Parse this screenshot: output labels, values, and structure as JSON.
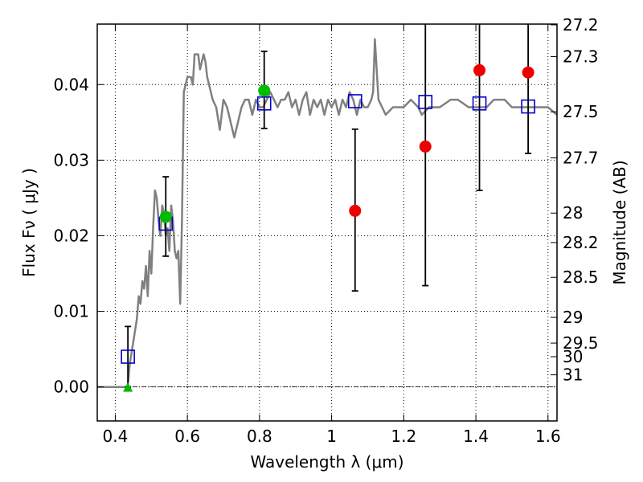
{
  "chart_data": {
    "type": "scatter",
    "xlabel": "Wavelength  λ (μm)",
    "ylabel": "Flux  Fν  ( μJy )",
    "y2label": "Magnitude (AB)",
    "xlim": [
      0.35,
      1.625
    ],
    "ylim": [
      -0.0045,
      0.048
    ],
    "grid": true,
    "x_ticks": [
      0.4,
      0.6,
      0.8,
      1.0,
      1.2,
      1.4,
      1.6
    ],
    "x_tick_labels": [
      "0.4",
      "0.6",
      "0.8",
      "1",
      "1.2",
      "1.4",
      "1.6"
    ],
    "y_ticks": [
      0.0,
      0.01,
      0.02,
      0.03,
      0.04
    ],
    "y_tick_labels": [
      "0.00",
      "0.01",
      "0.02",
      "0.03",
      "0.04"
    ],
    "mag_ticks": [
      {
        "label": "27.2",
        "flux": 0.0479
      },
      {
        "label": "27.3",
        "flux": 0.0437
      },
      {
        "label": "27.5",
        "flux": 0.0364
      },
      {
        "label": "27.7",
        "flux": 0.0303
      },
      {
        "label": "28",
        "flux": 0.023
      },
      {
        "label": "28.2",
        "flux": 0.0191
      },
      {
        "label": "28.5",
        "flux": 0.0145
      },
      {
        "label": "29",
        "flux": 0.0092
      },
      {
        "label": "29.5",
        "flux": 0.0058
      },
      {
        "label": "30",
        "flux": 0.004
      },
      {
        "label": "31",
        "flux": 0.0016
      }
    ],
    "colors": {
      "model_line": "#808080",
      "model_points": "#0000cc",
      "green_points": "#00bb00",
      "red_points": "#ee0000",
      "error_bars": "#000000"
    },
    "series": [
      {
        "kind": "model_spectrum",
        "x": [
          0.35,
          0.43,
          0.435,
          0.44,
          0.45,
          0.46,
          0.465,
          0.47,
          0.475,
          0.48,
          0.485,
          0.49,
          0.495,
          0.5,
          0.505,
          0.51,
          0.515,
          0.52,
          0.525,
          0.53,
          0.535,
          0.54,
          0.545,
          0.55,
          0.555,
          0.56,
          0.565,
          0.57,
          0.575,
          0.58,
          0.585,
          0.59,
          0.6,
          0.61,
          0.615,
          0.62,
          0.63,
          0.635,
          0.64,
          0.645,
          0.65,
          0.655,
          0.66,
          0.67,
          0.68,
          0.69,
          0.7,
          0.71,
          0.72,
          0.73,
          0.74,
          0.75,
          0.76,
          0.77,
          0.78,
          0.79,
          0.8,
          0.81,
          0.82,
          0.83,
          0.84,
          0.85,
          0.86,
          0.87,
          0.88,
          0.89,
          0.9,
          0.91,
          0.92,
          0.93,
          0.94,
          0.95,
          0.96,
          0.97,
          0.98,
          0.99,
          1.0,
          1.01,
          1.02,
          1.03,
          1.04,
          1.05,
          1.06,
          1.07,
          1.08,
          1.09,
          1.1,
          1.11,
          1.115,
          1.12,
          1.13,
          1.14,
          1.15,
          1.17,
          1.2,
          1.22,
          1.24,
          1.25,
          1.27,
          1.3,
          1.33,
          1.35,
          1.38,
          1.4,
          1.43,
          1.45,
          1.48,
          1.5,
          1.53,
          1.55,
          1.58,
          1.6,
          1.625
        ],
        "values": [
          0.0,
          0.0,
          0.0002,
          0.003,
          0.006,
          0.009,
          0.012,
          0.011,
          0.014,
          0.013,
          0.016,
          0.012,
          0.018,
          0.015,
          0.021,
          0.026,
          0.025,
          0.022,
          0.02,
          0.024,
          0.023,
          0.02,
          0.021,
          0.018,
          0.024,
          0.022,
          0.018,
          0.017,
          0.018,
          0.011,
          0.022,
          0.039,
          0.041,
          0.041,
          0.04,
          0.044,
          0.044,
          0.042,
          0.043,
          0.044,
          0.043,
          0.041,
          0.04,
          0.038,
          0.037,
          0.034,
          0.038,
          0.037,
          0.035,
          0.033,
          0.035,
          0.037,
          0.038,
          0.038,
          0.036,
          0.038,
          0.037,
          0.037,
          0.038,
          0.039,
          0.038,
          0.037,
          0.038,
          0.038,
          0.039,
          0.037,
          0.038,
          0.036,
          0.038,
          0.039,
          0.036,
          0.038,
          0.037,
          0.038,
          0.036,
          0.038,
          0.037,
          0.038,
          0.036,
          0.038,
          0.037,
          0.039,
          0.038,
          0.036,
          0.038,
          0.037,
          0.037,
          0.038,
          0.039,
          0.046,
          0.038,
          0.037,
          0.036,
          0.037,
          0.037,
          0.038,
          0.037,
          0.036,
          0.037,
          0.037,
          0.038,
          0.038,
          0.037,
          0.037,
          0.037,
          0.038,
          0.038,
          0.037,
          0.037,
          0.037,
          0.037,
          0.037,
          0.036
        ]
      },
      {
        "kind": "model_photometry",
        "marker": "square",
        "x": [
          0.435,
          0.54,
          0.813,
          1.065,
          1.26,
          1.41,
          1.545
        ],
        "values": [
          0.004,
          0.0216,
          0.0375,
          0.0378,
          0.0377,
          0.0375,
          0.0371
        ]
      },
      {
        "kind": "observed_detections",
        "marker": "circle",
        "x": [
          0.54,
          0.813
        ],
        "values": [
          0.0225,
          0.0392
        ],
        "err_low": [
          0.0173,
          0.0342
        ],
        "err_high": [
          0.0278,
          0.0444
        ]
      },
      {
        "kind": "observed_red",
        "marker": "circle",
        "x": [
          1.065,
          1.26,
          1.41,
          1.545
        ],
        "values": [
          0.0233,
          0.0318,
          0.0419,
          0.0416
        ],
        "err_low": [
          0.0127,
          0.0134,
          0.026,
          0.0309
        ],
        "err_high": [
          0.0341,
          0.048,
          0.048,
          0.048
        ]
      },
      {
        "kind": "upper_limit",
        "marker": "triangle",
        "x": [
          0.435
        ],
        "values": [
          0.0
        ],
        "err_low": [
          0.0
        ],
        "err_high": [
          0.008
        ]
      }
    ]
  }
}
